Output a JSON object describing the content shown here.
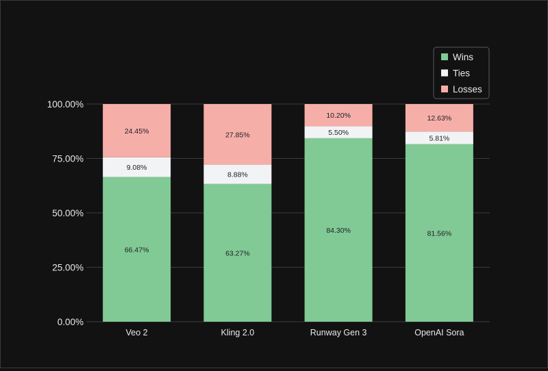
{
  "chart_data": {
    "type": "bar",
    "stacked": true,
    "categories": [
      "Veo 2",
      "Kling 2.0",
      "Runway Gen 3",
      "OpenAI Sora"
    ],
    "series": [
      {
        "name": "Wins",
        "color": "#81c995",
        "values": [
          66.47,
          63.27,
          84.3,
          81.56
        ],
        "labels": [
          "66.47%",
          "63.27%",
          "84.30%",
          "81.56%"
        ]
      },
      {
        "name": "Ties",
        "color": "#f1f3f4",
        "values": [
          9.08,
          8.88,
          5.5,
          5.81
        ],
        "labels": [
          "9.08%",
          "8.88%",
          "5.50%",
          "5.81%"
        ]
      },
      {
        "name": "Losses",
        "color": "#f6aea9",
        "values": [
          24.45,
          27.85,
          10.2,
          12.63
        ],
        "labels": [
          "24.45%",
          "27.85%",
          "10.20%",
          "12.63%"
        ]
      }
    ],
    "yticks": [
      {
        "value": 0,
        "label": "0.00%"
      },
      {
        "value": 25,
        "label": "25.00%"
      },
      {
        "value": 50,
        "label": "50.00%"
      },
      {
        "value": 75,
        "label": "75.00%"
      },
      {
        "value": 100,
        "label": "100.00%"
      }
    ],
    "ylim": [
      0,
      100
    ],
    "grid": true,
    "legend_position": "top-right",
    "title": "",
    "xlabel": "",
    "ylabel": "",
    "colors": {
      "background": "#121212",
      "axis_text": "#e8eaed",
      "gridline": "#3c3c3c",
      "label_text": "#202124"
    }
  }
}
